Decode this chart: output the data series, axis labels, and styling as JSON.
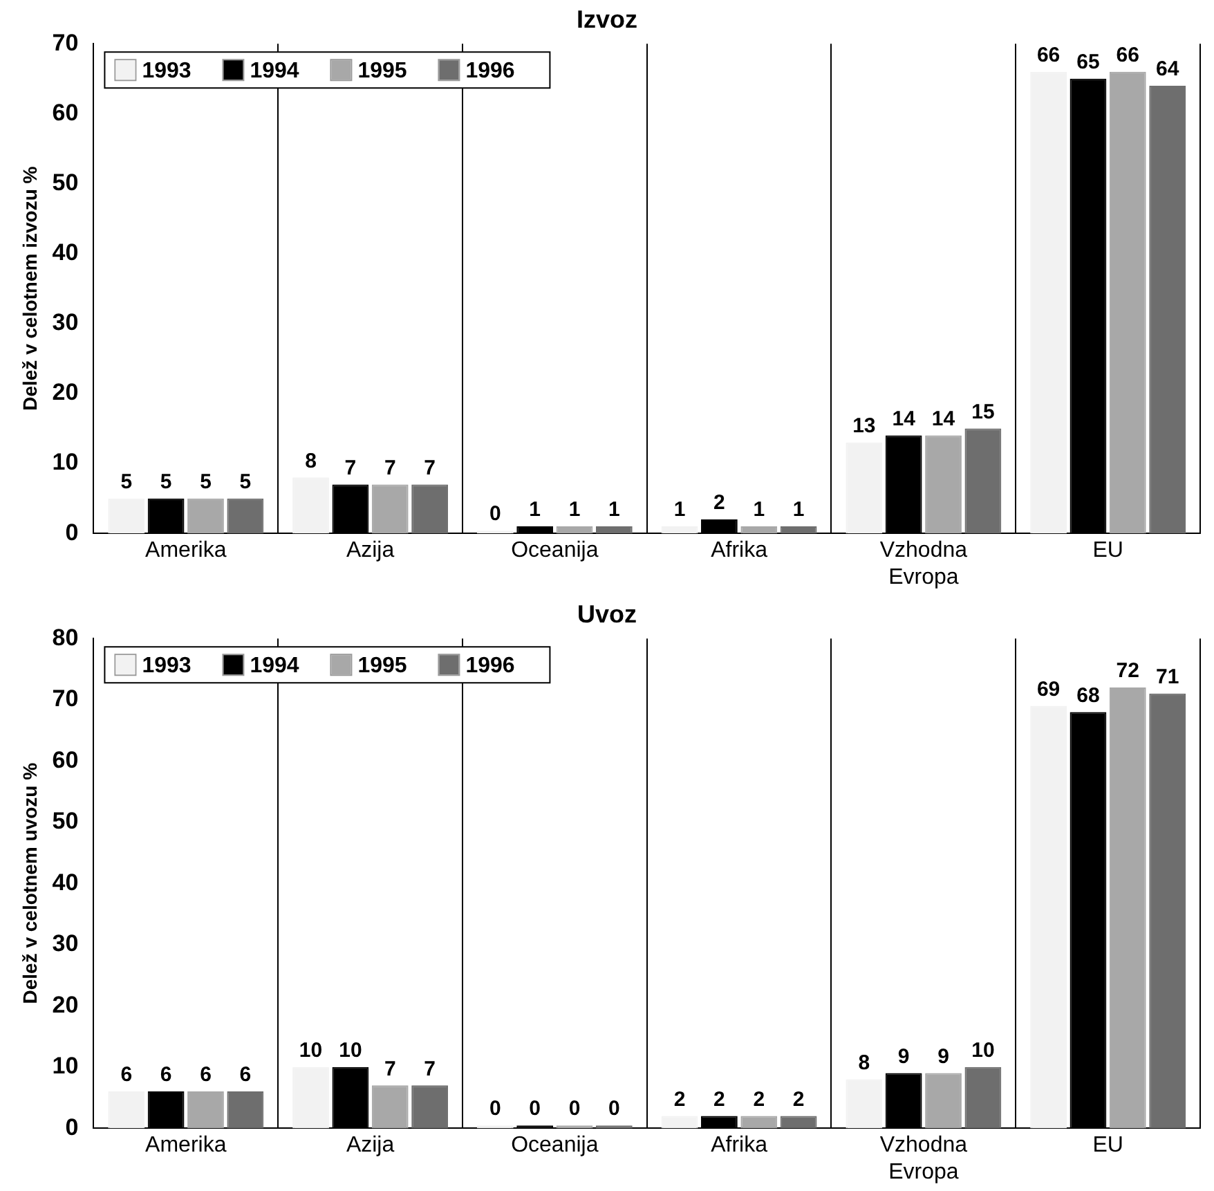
{
  "chart_data": [
    {
      "type": "bar",
      "title": "Izvoz",
      "ylabel": "Delež v celotnem izvozu %",
      "categories": [
        "Amerika",
        "Azija",
        "Oceanija",
        "Afrika",
        "Vzhodna Evropa",
        "EU"
      ],
      "series": [
        {
          "name": "1993",
          "color": "#f2f2f2",
          "values": [
            5,
            8,
            0,
            1,
            13,
            66
          ]
        },
        {
          "name": "1994",
          "color": "#000000",
          "values": [
            5,
            7,
            1,
            2,
            14,
            65
          ]
        },
        {
          "name": "1995",
          "color": "#a8a8a8",
          "values": [
            5,
            7,
            1,
            1,
            14,
            66
          ]
        },
        {
          "name": "1996",
          "color": "#6e6e6e",
          "values": [
            5,
            7,
            1,
            1,
            15,
            64
          ]
        }
      ],
      "ylim": [
        0,
        70
      ],
      "yticks": [
        0,
        10,
        20,
        30,
        40,
        50,
        60,
        70
      ],
      "grid": "x",
      "legend": "top left",
      "data_labels": true
    },
    {
      "type": "bar",
      "title": "Uvoz",
      "ylabel": "Delež v celotnem uvozu %",
      "categories": [
        "Amerika",
        "Azija",
        "Oceanija",
        "Afrika",
        "Vzhodna Evropa",
        "EU"
      ],
      "series": [
        {
          "name": "1993",
          "color": "#f2f2f2",
          "values": [
            6,
            10,
            0,
            2,
            8,
            69
          ]
        },
        {
          "name": "1994",
          "color": "#000000",
          "values": [
            6,
            10,
            0,
            2,
            9,
            68
          ]
        },
        {
          "name": "1995",
          "color": "#a8a8a8",
          "values": [
            6,
            7,
            0,
            2,
            9,
            72
          ]
        },
        {
          "name": "1996",
          "color": "#6e6e6e",
          "values": [
            6,
            7,
            0,
            2,
            10,
            71
          ]
        }
      ],
      "ylim": [
        0,
        80
      ],
      "yticks": [
        0,
        10,
        20,
        30,
        40,
        50,
        60,
        70,
        80
      ],
      "grid": "x",
      "legend": "top left",
      "data_labels": true
    }
  ]
}
